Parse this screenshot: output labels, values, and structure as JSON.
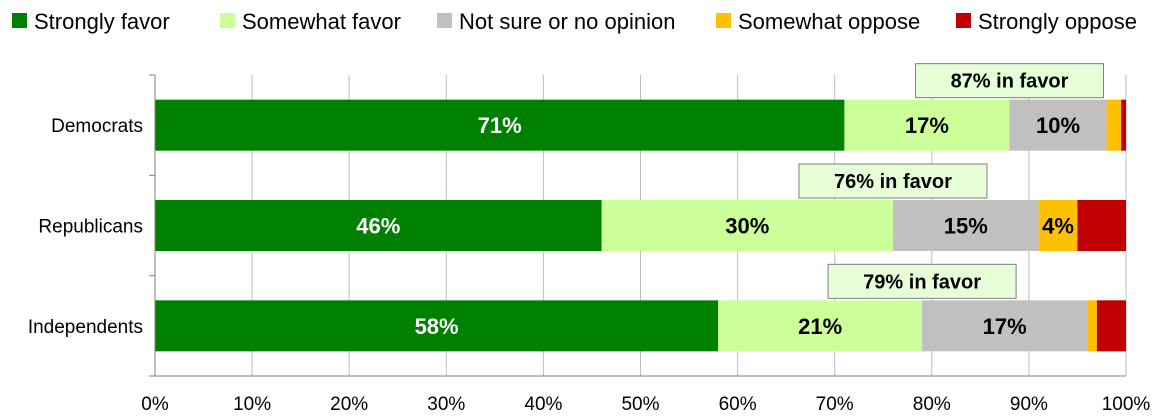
{
  "chart_data": {
    "type": "bar",
    "orientation": "horizontal",
    "stacked": true,
    "categories": [
      "Democrats",
      "Republicans",
      "Independents"
    ],
    "series": [
      {
        "name": "Strongly favor",
        "color": "#008000",
        "label_color": "#ffffff",
        "values": [
          71,
          46,
          58
        ],
        "labels": [
          "71%",
          "46%",
          "58%"
        ]
      },
      {
        "name": "Somewhat favor",
        "color": "#ccff99",
        "label_color": "#000000",
        "values": [
          17,
          30,
          21
        ],
        "labels": [
          "17%",
          "30%",
          "21%"
        ]
      },
      {
        "name": "Not sure or no opinion",
        "color": "#c0c0c0",
        "label_color": "#000000",
        "values": [
          10,
          15,
          17
        ],
        "labels": [
          "10%",
          "15%",
          "17%"
        ]
      },
      {
        "name": "Somewhat oppose",
        "color": "#ffc000",
        "label_color": "#000000",
        "values": [
          1.5,
          4,
          1
        ],
        "labels": [
          "",
          "4%",
          ""
        ]
      },
      {
        "name": "Strongly oppose",
        "color": "#c00000",
        "label_color": "#ffffff",
        "values": [
          0.5,
          5,
          3
        ],
        "labels": [
          "",
          "",
          ""
        ]
      }
    ],
    "callouts": [
      "87% in favor",
      "76% in favor",
      "79% in favor"
    ],
    "callout_background": "#e6ffd9",
    "x_ticks": [
      "0%",
      "10%",
      "20%",
      "30%",
      "40%",
      "50%",
      "60%",
      "70%",
      "80%",
      "90%",
      "100%"
    ],
    "xlim": [
      0,
      100
    ],
    "grid": true,
    "legend_position": "top"
  }
}
